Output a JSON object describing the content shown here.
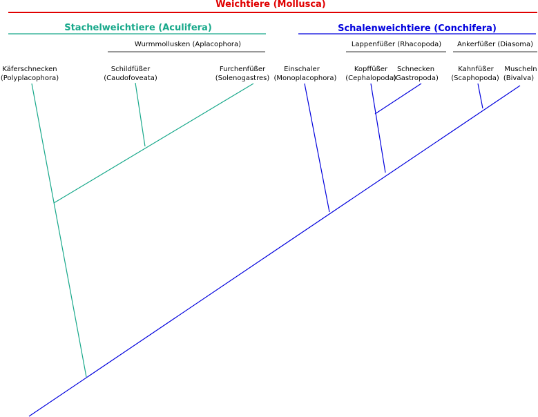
{
  "title": "Weichtiere (Mollusca)",
  "groups": [
    {
      "label": "Stachelweichtiere (Aculifera)"
    },
    {
      "label": "Schalenweichtiere (Conchifera)"
    }
  ],
  "subgroups": [
    {
      "label": "Wurmmollusken (Aplacophora)"
    },
    {
      "label": "Lappenfüßer (Rhacopoda)"
    },
    {
      "label": "Ankerfüßer (Diasoma)"
    }
  ],
  "taxa": [
    {
      "name": "Käferschnecken",
      "latin": "(Polyplacophora)"
    },
    {
      "name": "Schildfüßer",
      "latin": "(Caudofoveata)"
    },
    {
      "name": "Furchenfüßer",
      "latin": "(Solenogastres)"
    },
    {
      "name": "Einschaler",
      "latin": "(Monoplacophora)"
    },
    {
      "name": "Kopffüßer",
      "latin": "(Cephalopoda)"
    },
    {
      "name": "Schnecken",
      "latin": "(Gastropoda)"
    },
    {
      "name": "Kahnfüßer",
      "latin": "(Scaphopoda)"
    },
    {
      "name": "Muscheln",
      "latin": "(Bivalva)"
    }
  ]
}
